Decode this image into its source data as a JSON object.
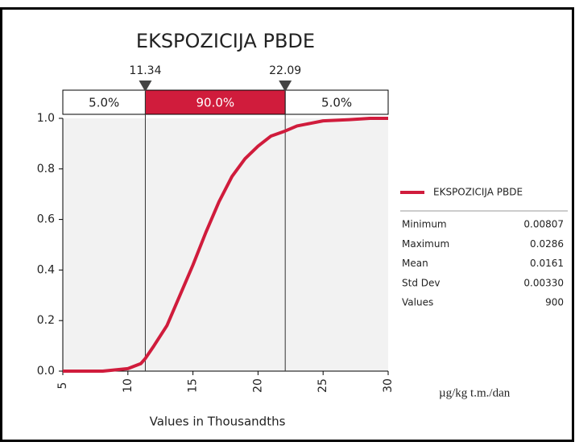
{
  "chart_data": {
    "type": "cumulative",
    "title": "EKSPOZICIJA PBDE",
    "x_label": "Values in Thousandths",
    "unit_note": "µg/kg t.m./dan",
    "color": "#d01c3c",
    "xlim": [
      5,
      30
    ],
    "xticks": [
      5,
      10,
      15,
      20,
      25,
      30
    ],
    "ylim": [
      0,
      1
    ],
    "yticks": [
      {
        "value": 0,
        "label": "0.0"
      },
      {
        "value": 0.2,
        "label": "0.2"
      },
      {
        "value": 0.4,
        "label": "0.4"
      },
      {
        "value": 0.6,
        "label": "0.6"
      },
      {
        "value": 0.8,
        "label": "0.8"
      },
      {
        "value": 1,
        "label": "1.0"
      }
    ],
    "markers": [
      11.34,
      22.09
    ],
    "bands": {
      "values": [
        5,
        90,
        5
      ],
      "value_labels": [
        "5.0%",
        "90.0%",
        "5.0%"
      ]
    },
    "series": [
      {
        "name": "EKSPOZICIJA PBDE",
        "color": "#d01c3c",
        "x": [
          5,
          8.07,
          10,
          11,
          11.34,
          12,
          13,
          14,
          15,
          16,
          17,
          18,
          19,
          20,
          21,
          22.09,
          23,
          24,
          25,
          27,
          28.6,
          30
        ],
        "values": [
          0,
          0,
          0.01,
          0.03,
          0.05,
          0.1,
          0.18,
          0.3,
          0.42,
          0.55,
          0.67,
          0.77,
          0.84,
          0.89,
          0.93,
          0.95,
          0.97,
          0.98,
          0.99,
          0.995,
          1,
          1
        ]
      }
    ],
    "stats": [
      [
        "Minimum",
        "0.00807"
      ],
      [
        "Maximum",
        "0.0286"
      ],
      [
        "Mean",
        "0.0161"
      ],
      [
        "Std Dev",
        "0.00330"
      ],
      [
        "Values",
        "900"
      ]
    ]
  }
}
